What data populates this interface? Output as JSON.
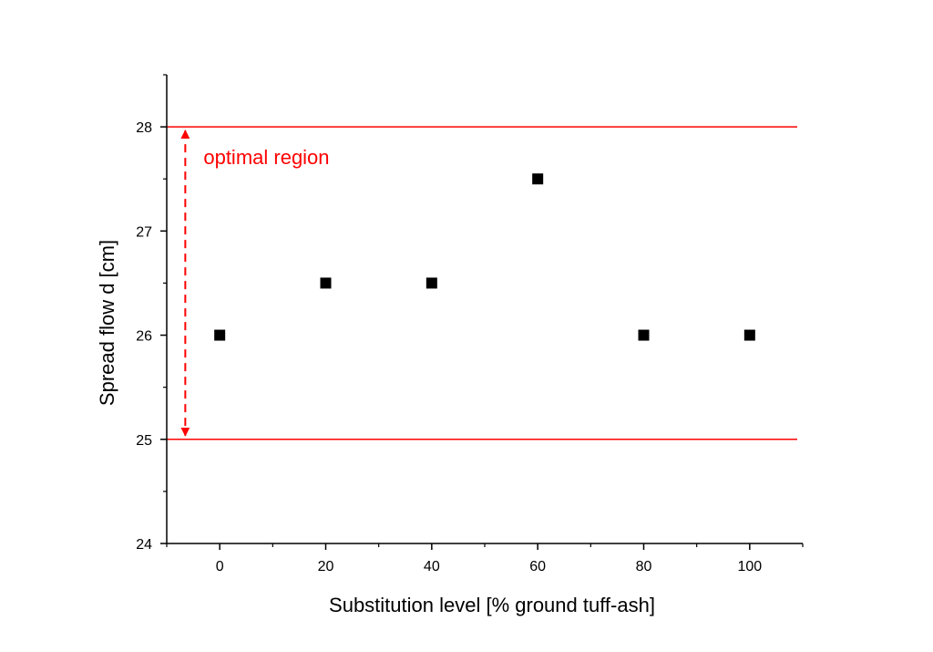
{
  "chart_data": {
    "type": "scatter",
    "title": "",
    "xlabel": "Substitution level [% ground tuff-ash]",
    "ylabel": "Spread flow d [cm]",
    "xlim": [
      -10,
      110
    ],
    "ylim": [
      24,
      28.5
    ],
    "x_ticks": [
      0,
      20,
      40,
      60,
      80,
      100
    ],
    "x_tick_labels": [
      "0",
      "20",
      "40",
      "60",
      "80",
      "100"
    ],
    "y_ticks": [
      24,
      25,
      26,
      27,
      28
    ],
    "y_tick_labels": [
      "24",
      "25",
      "26",
      "27",
      "28"
    ],
    "grid": false,
    "series": [
      {
        "name": "Spread flow",
        "marker": "square",
        "color": "#000000",
        "x": [
          0,
          20,
          40,
          60,
          80,
          100
        ],
        "y": [
          26,
          26.5,
          26.5,
          27.5,
          26,
          26
        ]
      }
    ],
    "reference_lines": [
      {
        "y": 28,
        "color": "#ff0000"
      },
      {
        "y": 25,
        "color": "#ff0000"
      }
    ],
    "annotation": {
      "text": "optimal region",
      "color": "#ff0000",
      "arrow_from": 25,
      "arrow_to": 28,
      "arrow_x": -6.5
    }
  }
}
